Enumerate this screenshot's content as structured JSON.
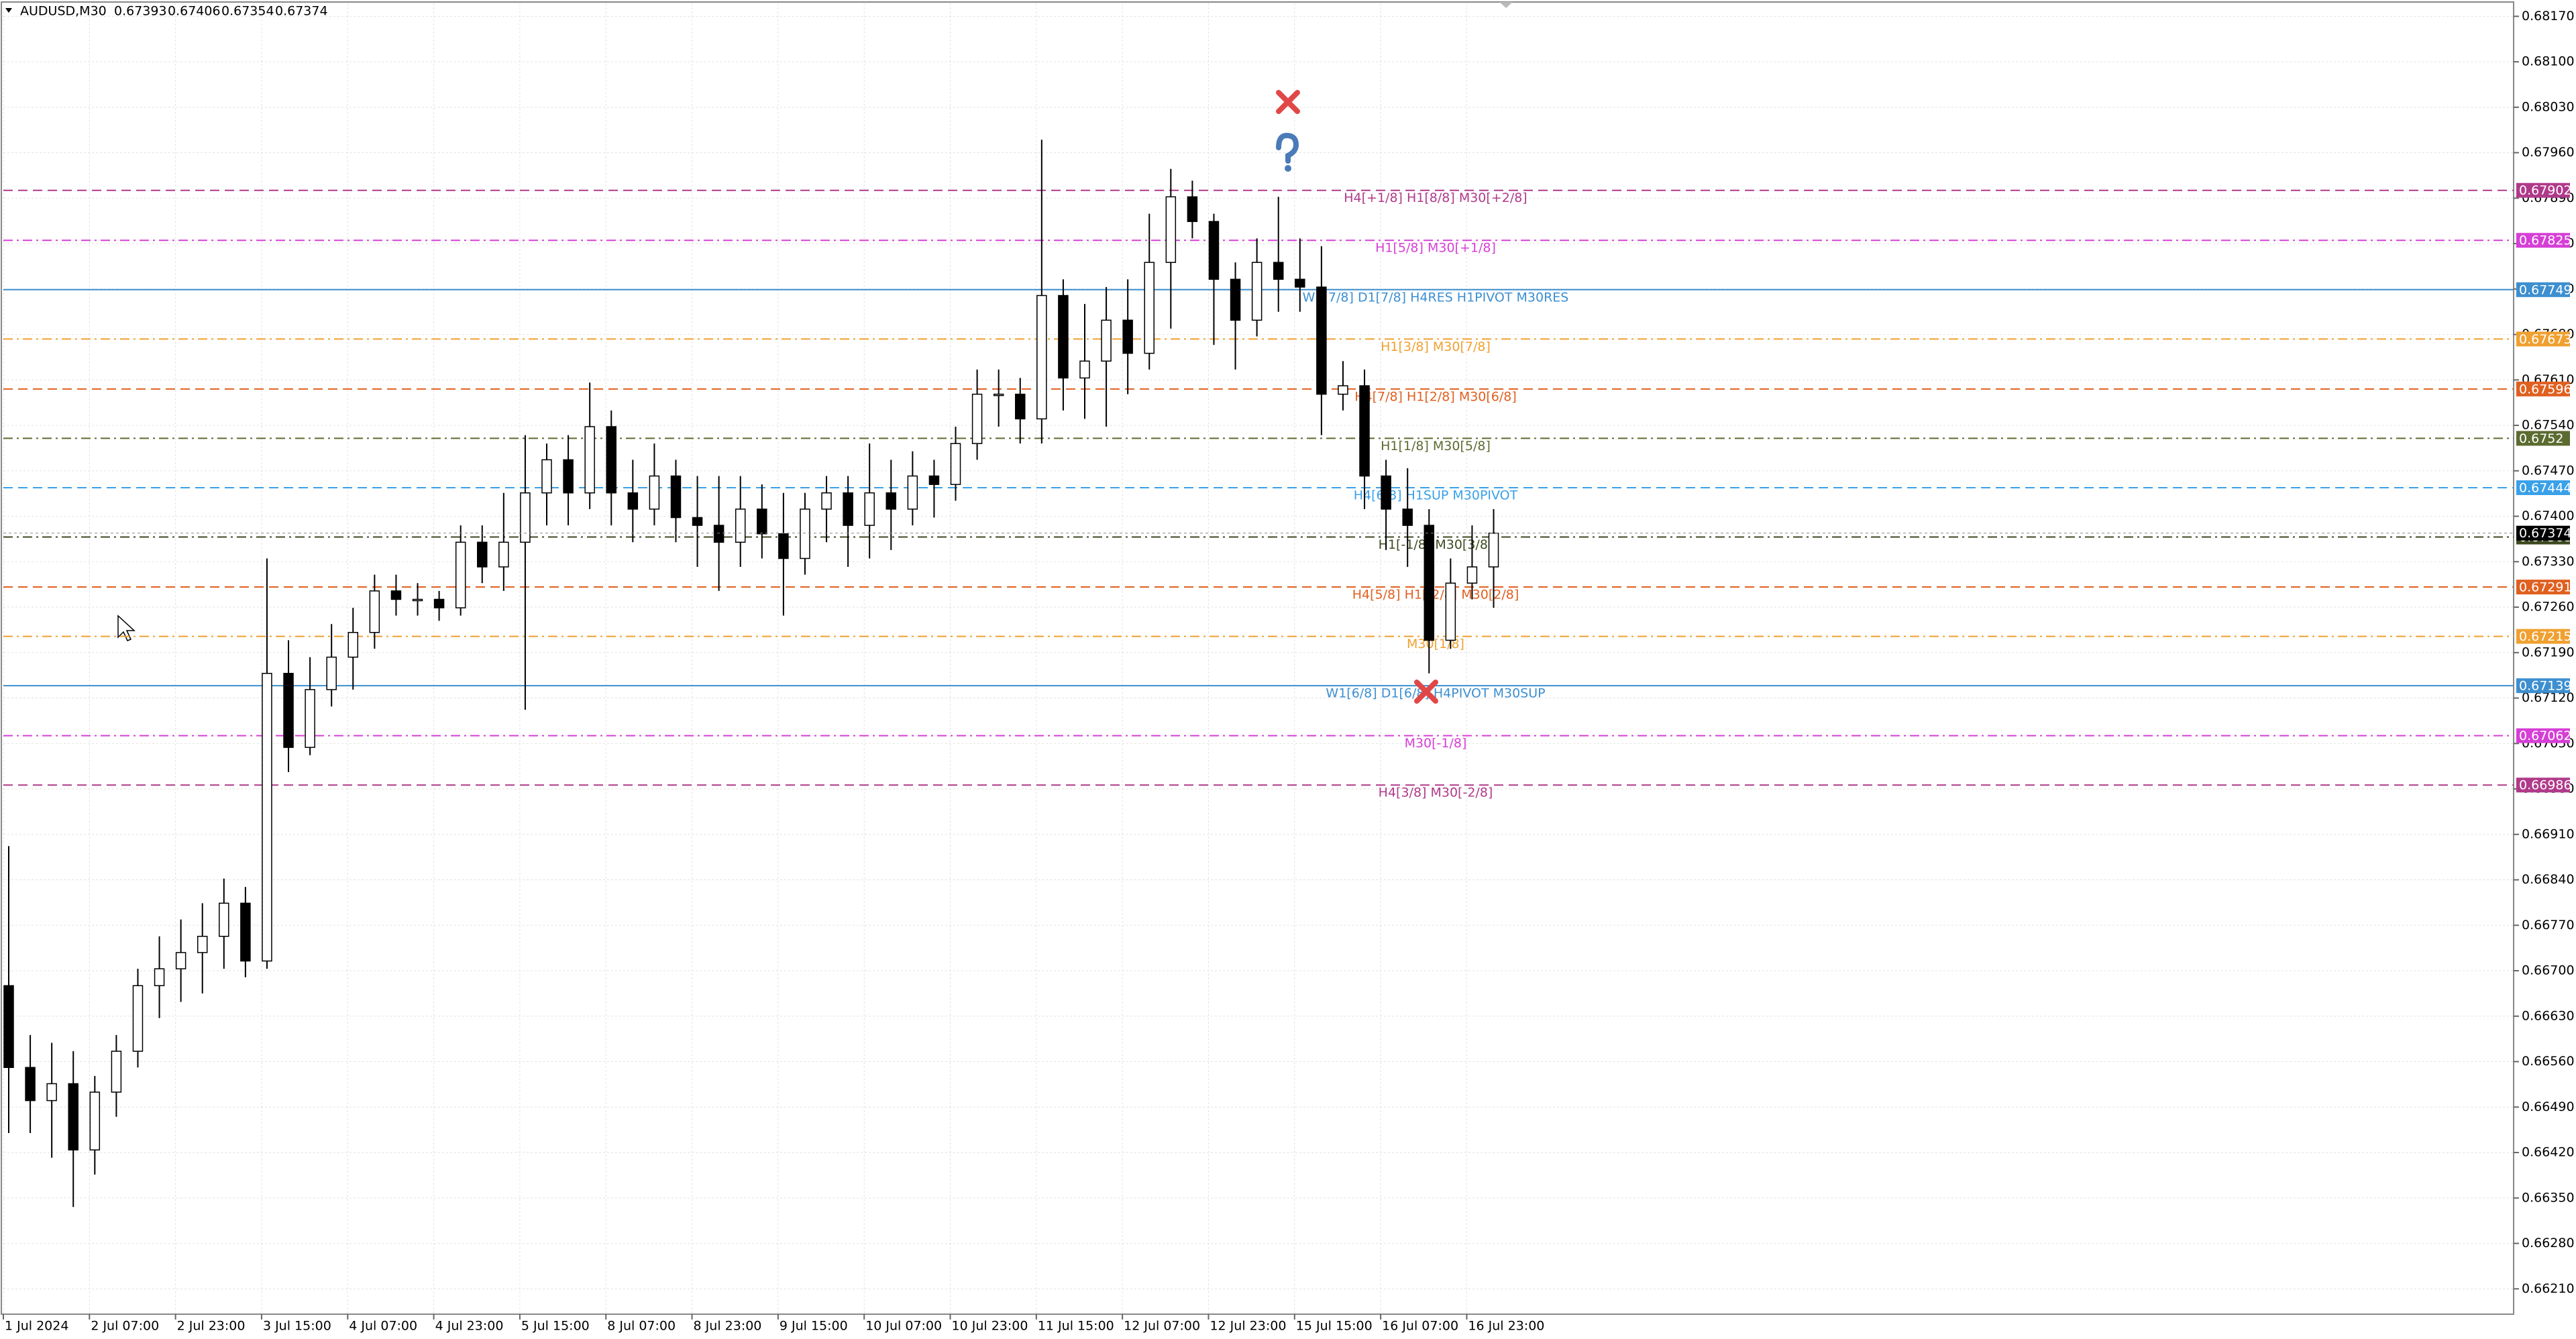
{
  "chart_data": {
    "type": "candlestick",
    "header": {
      "symbol": "AUDUSD,M30",
      "ohlc": [
        0.67393,
        0.67406,
        0.67354,
        0.67374
      ]
    },
    "categories": [
      "1 Jul 2024",
      null,
      null,
      null,
      "2 Jul 07:00",
      null,
      null,
      null,
      "2 Jul 23:00",
      null,
      null,
      null,
      "3 Jul 15:00",
      null,
      null,
      null,
      "4 Jul 07:00",
      null,
      null,
      null,
      "4 Jul 23:00",
      null,
      null,
      null,
      "5 Jul 15:00",
      null,
      null,
      null,
      "8 Jul 07:00",
      null,
      null,
      null,
      "8 Jul 23:00",
      null,
      null,
      null,
      "9 Jul 15:00",
      null,
      null,
      null,
      "10 Jul 07:00",
      null,
      null,
      null,
      "10 Jul 23:00",
      null,
      null,
      null,
      "11 Jul 15:00",
      null,
      null,
      null,
      "12 Jul 07:00",
      null,
      null,
      null,
      "12 Jul 23:00",
      null,
      null,
      null,
      "15 Jul 15:00",
      null,
      null,
      null,
      "16 Jul 07:00",
      null,
      null,
      null,
      "16 Jul 23:00",
      null
    ],
    "open": [
      0.66677,
      0.66551,
      0.665,
      0.66526,
      0.66424,
      0.66513,
      0.66576,
      0.66677,
      0.66703,
      0.66728,
      0.66753,
      0.66804,
      0.66715,
      0.67158,
      0.67044,
      0.67133,
      0.67183,
      0.67221,
      0.67285,
      0.67272,
      0.67272,
      0.67259,
      0.6736,
      0.67322,
      0.6736,
      0.67436,
      0.67487,
      0.67436,
      0.67538,
      0.67436,
      0.67411,
      0.67462,
      0.67398,
      0.67386,
      0.6736,
      0.67411,
      0.67373,
      0.67335,
      0.67411,
      0.67436,
      0.67386,
      0.67436,
      0.67411,
      0.67462,
      0.67449,
      0.67512,
      0.67588,
      0.67588,
      0.6755,
      0.6774,
      0.67613,
      0.67639,
      0.67702,
      0.67651,
      0.67791,
      0.67892,
      0.67854,
      0.67765,
      0.67702,
      0.67791,
      0.67765,
      0.67753,
      0.67588,
      0.67601,
      0.67462,
      0.67411,
      0.67386,
      0.67209,
      0.67297,
      0.67322
    ],
    "high": [
      0.66892,
      0.66601,
      0.66589,
      0.66576,
      0.66538,
      0.66601,
      0.66703,
      0.66753,
      0.66779,
      0.66804,
      0.66842,
      0.66829,
      0.67335,
      0.67209,
      0.67183,
      0.67234,
      0.67259,
      0.6731,
      0.6731,
      0.67297,
      0.67285,
      0.67386,
      0.67386,
      0.67436,
      0.67525,
      0.67512,
      0.67525,
      0.67606,
      0.67563,
      0.67487,
      0.67512,
      0.67487,
      0.67462,
      0.67462,
      0.67462,
      0.67449,
      0.67436,
      0.67436,
      0.67462,
      0.67462,
      0.67512,
      0.67487,
      0.675,
      0.67487,
      0.67538,
      0.67626,
      0.67626,
      0.67613,
      0.6798,
      0.67765,
      0.67727,
      0.67753,
      0.67765,
      0.67866,
      0.67935,
      0.67917,
      0.67866,
      0.67791,
      0.67828,
      0.67892,
      0.67828,
      0.67816,
      0.67639,
      0.67626,
      0.67487,
      0.67474,
      0.67411,
      0.67335,
      0.67386,
      0.67411
    ],
    "low": [
      0.6645,
      0.6645,
      0.66412,
      0.66336,
      0.66386,
      0.66475,
      0.66551,
      0.66627,
      0.66652,
      0.66665,
      0.66703,
      0.6669,
      0.66703,
      0.67006,
      0.67032,
      0.67107,
      0.67133,
      0.67196,
      0.67247,
      0.67247,
      0.67239,
      0.67247,
      0.67297,
      0.67285,
      0.67102,
      0.67386,
      0.67386,
      0.67411,
      0.67386,
      0.6736,
      0.67386,
      0.6736,
      0.67322,
      0.67285,
      0.67322,
      0.67335,
      0.67247,
      0.6731,
      0.6736,
      0.67322,
      0.67335,
      0.67348,
      0.67386,
      0.67398,
      0.67424,
      0.67487,
      0.67538,
      0.67512,
      0.67512,
      0.67563,
      0.6755,
      0.67538,
      0.67588,
      0.67626,
      0.67689,
      0.67828,
      0.67664,
      0.67626,
      0.67677,
      0.67715,
      0.67715,
      0.67525,
      0.67563,
      0.67411,
      0.67348,
      0.67322,
      0.67158,
      0.67196,
      0.67272,
      0.67259
    ],
    "close": [
      0.66551,
      0.665,
      0.66526,
      0.66424,
      0.66513,
      0.66576,
      0.66677,
      0.66703,
      0.66728,
      0.66753,
      0.66804,
      0.66715,
      0.67158,
      0.67044,
      0.67133,
      0.67183,
      0.67221,
      0.67285,
      0.67272,
      0.67272,
      0.67259,
      0.6736,
      0.67322,
      0.6736,
      0.67436,
      0.67487,
      0.67436,
      0.67538,
      0.67436,
      0.67411,
      0.67462,
      0.67398,
      0.67386,
      0.6736,
      0.67411,
      0.67373,
      0.67335,
      0.67411,
      0.67436,
      0.67386,
      0.67436,
      0.67411,
      0.67462,
      0.67449,
      0.67512,
      0.67588,
      0.67588,
      0.6755,
      0.6774,
      0.67613,
      0.67639,
      0.67702,
      0.67651,
      0.67791,
      0.67892,
      0.67854,
      0.67765,
      0.67702,
      0.67791,
      0.67765,
      0.67753,
      0.67588,
      0.67601,
      0.67462,
      0.67411,
      0.67386,
      0.67209,
      0.67297,
      0.67322,
      0.67374
    ],
    "ylim": [
      0.66171,
      0.6819
    ],
    "yticks": [
      {
        "value": 0.6817,
        "label": "0.68170"
      },
      {
        "value": 0.681,
        "label": "0.68100"
      },
      {
        "value": 0.6803,
        "label": "0.68030"
      },
      {
        "value": 0.6796,
        "label": "0.67960"
      },
      {
        "value": 0.6789,
        "label": "0.67890"
      },
      {
        "value": 0.6782,
        "label": "0.67820"
      },
      {
        "value": 0.6775,
        "label": "0.67750"
      },
      {
        "value": 0.6768,
        "label": "0.67680"
      },
      {
        "value": 0.6761,
        "label": "0.67610"
      },
      {
        "value": 0.6754,
        "label": "0.67540"
      },
      {
        "value": 0.6747,
        "label": "0.67470"
      },
      {
        "value": 0.674,
        "label": "0.67400"
      },
      {
        "value": 0.6733,
        "label": "0.67330"
      },
      {
        "value": 0.6726,
        "label": "0.67260"
      },
      {
        "value": 0.6719,
        "label": "0.67190"
      },
      {
        "value": 0.6712,
        "label": "0.67120"
      },
      {
        "value": 0.6705,
        "label": "0.67050"
      },
      {
        "value": 0.6698,
        "label": "0.66980"
      },
      {
        "value": 0.6691,
        "label": "0.66910"
      },
      {
        "value": 0.6684,
        "label": "0.66840"
      },
      {
        "value": 0.6677,
        "label": "0.66770"
      },
      {
        "value": 0.667,
        "label": "0.66700"
      },
      {
        "value": 0.6663,
        "label": "0.66630"
      },
      {
        "value": 0.6656,
        "label": "0.66560"
      },
      {
        "value": 0.6649,
        "label": "0.66490"
      },
      {
        "value": 0.6642,
        "label": "0.66420"
      },
      {
        "value": 0.6635,
        "label": "0.66350"
      },
      {
        "value": 0.6628,
        "label": "0.66280"
      },
      {
        "value": 0.6621,
        "label": "0.66210"
      }
    ],
    "grid": true,
    "bull_color": "#ffffff",
    "bear_color": "#000000",
    "levels": [
      {
        "value": 0.67902,
        "label": "H4[+1/8] H1[8/8] M30[+2/8]",
        "color": "#b03a8a",
        "style": "dashed"
      },
      {
        "value": 0.67825,
        "label": "H1[5/8] M30[+1/8]",
        "color": "#d63fd6",
        "style": "dashdot"
      },
      {
        "value": 0.67749,
        "label": "W1[7/8] D1[7/8] H4RES H1PIVOT M30RES",
        "color": "#3d8fd0",
        "style": "solid"
      },
      {
        "value": 0.67673,
        "label": "H1[3/8] M30[7/8]",
        "color": "#f0a030",
        "style": "dashdot"
      },
      {
        "value": 0.67596,
        "label": "H4[7/8] H1[2/8] M30[6/8]",
        "color": "#e06020",
        "style": "dashed"
      },
      {
        "value": 0.6752,
        "label": "H1[1/8] M30[5/8]",
        "color": "#5c6b30",
        "style": "dashdot"
      },
      {
        "value": 0.67444,
        "label": "H4[6/8] H1SUP M30PIVOT",
        "color": "#3aa0e8",
        "style": "dashed"
      },
      {
        "value": 0.67368,
        "label": "H1[-1/8] M30[3/8]",
        "color": "#3d4a20",
        "style": "dashdot"
      },
      {
        "value": 0.67291,
        "label": "H4[5/8] H1[-2/8] M30[2/8]",
        "color": "#e06020",
        "style": "dashed"
      },
      {
        "value": 0.67215,
        "label": "M30[1/8]",
        "color": "#f0a030",
        "style": "dashdot"
      },
      {
        "value": 0.67139,
        "label": "W1[6/8] D1[6/8] H4PIVOT M30SUP",
        "color": "#3d8fd0",
        "style": "solid"
      },
      {
        "value": 0.67062,
        "label": "M30[-1/8]",
        "color": "#d63fd6",
        "style": "dashdot"
      },
      {
        "value": 0.66986,
        "label": "H4[3/8] M30[-2/8]",
        "color": "#b03a8a",
        "style": "dashed"
      }
    ],
    "last_price": 0.67374
  }
}
